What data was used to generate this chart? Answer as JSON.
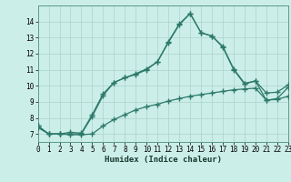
{
  "xlabel": "Humidex (Indice chaleur)",
  "background_color": "#cceee8",
  "line_color": "#2d7a6a",
  "grid_color": "#b0d8d0",
  "x_main": [
    0,
    1,
    2,
    3,
    4,
    5,
    6,
    7,
    8,
    9,
    10,
    11,
    12,
    13,
    14,
    15,
    16,
    17,
    18,
    19,
    20,
    21,
    22,
    23
  ],
  "y_main": [
    7.5,
    7.0,
    7.0,
    7.0,
    7.0,
    8.1,
    9.4,
    10.2,
    10.5,
    10.7,
    11.0,
    11.5,
    12.7,
    13.8,
    14.5,
    13.3,
    13.1,
    12.4,
    11.0,
    10.1,
    10.3,
    9.1,
    9.2,
    9.9
  ],
  "x_low": [
    0,
    1,
    2,
    3,
    4,
    5,
    6,
    7,
    8,
    9,
    10,
    11,
    12,
    13,
    14,
    15,
    16,
    17,
    18,
    19,
    20,
    21,
    22,
    23
  ],
  "y_low": [
    7.4,
    7.0,
    7.0,
    6.95,
    6.95,
    7.0,
    7.5,
    7.9,
    8.2,
    8.5,
    8.7,
    8.85,
    9.05,
    9.2,
    9.35,
    9.45,
    9.55,
    9.65,
    9.75,
    9.8,
    9.85,
    9.1,
    9.15,
    9.35
  ],
  "x_high": [
    0,
    1,
    2,
    3,
    4,
    5,
    6,
    7,
    8,
    9,
    10,
    11,
    12,
    13,
    14,
    15,
    16,
    17,
    18,
    19,
    20,
    21,
    22,
    23
  ],
  "y_high": [
    7.5,
    7.0,
    7.0,
    7.1,
    7.05,
    8.2,
    9.5,
    10.2,
    10.5,
    10.75,
    11.05,
    11.5,
    12.75,
    13.85,
    14.5,
    13.3,
    13.1,
    12.45,
    11.05,
    10.15,
    10.3,
    9.55,
    9.6,
    10.05
  ],
  "ylim": [
    6.5,
    15.0
  ],
  "xlim": [
    0,
    23
  ],
  "yticks": [
    7,
    8,
    9,
    10,
    11,
    12,
    13,
    14
  ],
  "xticks": [
    0,
    1,
    2,
    3,
    4,
    5,
    6,
    7,
    8,
    9,
    10,
    11,
    12,
    13,
    14,
    15,
    16,
    17,
    18,
    19,
    20,
    21,
    22,
    23
  ],
  "marker": "+",
  "markersize": 4,
  "linewidth": 0.9,
  "tick_fontsize": 5.5,
  "xlabel_fontsize": 6.5
}
